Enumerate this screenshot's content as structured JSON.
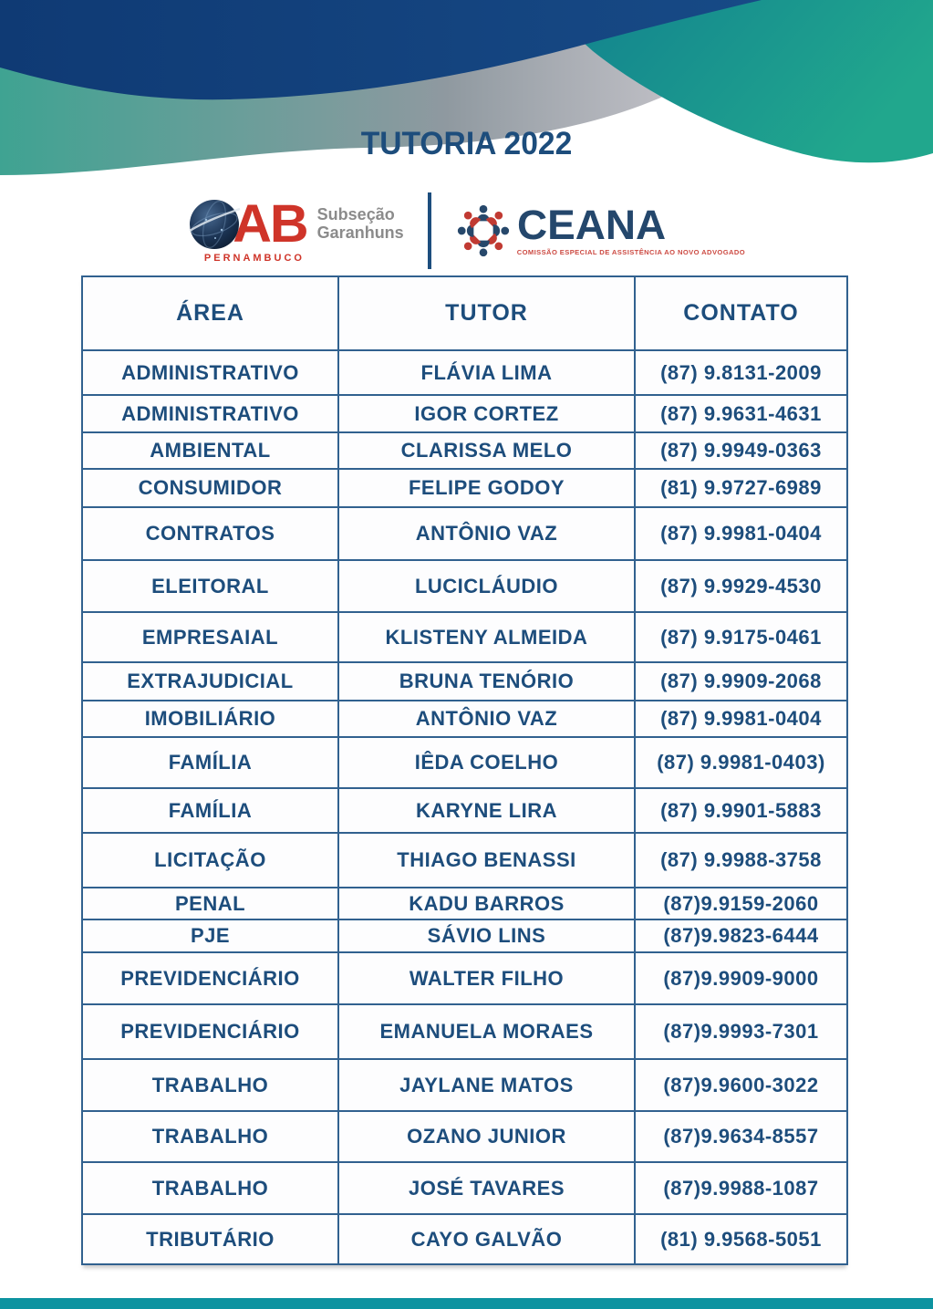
{
  "page": {
    "title": "TUTORIA 2022"
  },
  "logos": {
    "oab": {
      "letters": "AB",
      "state": "PERNAMBUCO",
      "subsection_line1": "Subseção",
      "subsection_line2": "Garanhuns"
    },
    "ceana": {
      "name": "CEANA",
      "subtitle": "COMISSÃO ESPECIAL DE ASSISTÊNCIA AO NOVO ADVOGADO"
    }
  },
  "table": {
    "columns": [
      "ÁREA",
      "TUTOR",
      "CONTATO"
    ],
    "rows": [
      {
        "area": "ADMINISTRATIVO",
        "tutor": "FLÁVIA LIMA",
        "contato": "(87) 9.8131-2009"
      },
      {
        "area": "ADMINISTRATIVO",
        "tutor": "IGOR CORTEZ",
        "contato": "(87) 9.9631-4631"
      },
      {
        "area": "AMBIENTAL",
        "tutor": "CLARISSA MELO",
        "contato": "(87) 9.9949-0363"
      },
      {
        "area": "CONSUMIDOR",
        "tutor": "FELIPE GODOY",
        "contato": "(81) 9.9727-6989"
      },
      {
        "area": "CONTRATOS",
        "tutor": "ANTÔNIO VAZ",
        "contato": "(87) 9.9981-0404"
      },
      {
        "area": "ELEITORAL",
        "tutor": "LUCICLÁUDIO",
        "contato": "(87) 9.9929-4530"
      },
      {
        "area": "EMPRESAIAL",
        "tutor": "KLISTENY ALMEIDA",
        "contato": "(87) 9.9175-0461"
      },
      {
        "area": "EXTRAJUDICIAL",
        "tutor": "BRUNA TENÓRIO",
        "contato": "(87) 9.9909-2068"
      },
      {
        "area": "IMOBILIÁRIO",
        "tutor": "ANTÔNIO VAZ",
        "contato": "(87) 9.9981-0404"
      },
      {
        "area": "FAMÍLIA",
        "tutor": "IÊDA COELHO",
        "contato": "(87) 9.9981-0403)"
      },
      {
        "area": "FAMÍLIA",
        "tutor": "KARYNE LIRA",
        "contato": "(87) 9.9901-5883"
      },
      {
        "area": "LICITAÇÃO",
        "tutor": "THIAGO BENASSI",
        "contato": "(87) 9.9988-3758"
      },
      {
        "area": "PENAL",
        "tutor": "KADU BARROS",
        "contato": "(87)9.9159-2060"
      },
      {
        "area": "PJE",
        "tutor": "SÁVIO LINS",
        "contato": "(87)9.9823-6444"
      },
      {
        "area": "PREVIDENCIÁRIO",
        "tutor": "WALTER FILHO",
        "contato": "(87)9.9909-9000"
      },
      {
        "area": "PREVIDENCIÁRIO",
        "tutor": "EMANUELA MORAES",
        "contato": "(87)9.9993-7301"
      },
      {
        "area": "TRABALHO",
        "tutor": "JAYLANE MATOS",
        "contato": "(87)9.9600-3022"
      },
      {
        "area": "TRABALHO",
        "tutor": "OZANO JUNIOR",
        "contato": "(87)9.9634-8557"
      },
      {
        "area": "TRABALHO",
        "tutor": "JOSÉ TAVARES",
        "contato": "(87)9.9988-1087"
      },
      {
        "area": "TRIBUTÁRIO",
        "tutor": "CAYO GALVÃO",
        "contato": "(81) 9.9568-5051"
      }
    ]
  },
  "colors": {
    "navy_wave": "#123f7a",
    "teal_wave": "#1a9490",
    "footer_teal": "#0d93a0",
    "text_blue": "#1d4d7c",
    "border_blue": "#31618f",
    "oab_red": "#cf3429",
    "ceana_navy": "#24476c",
    "ceana_red": "#cc4a42"
  }
}
